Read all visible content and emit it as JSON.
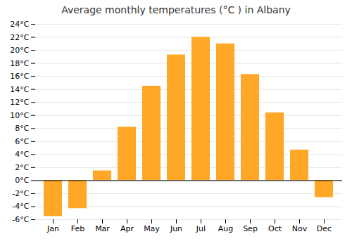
{
  "chart_data": {
    "type": "bar",
    "title": "Average monthly temperatures (°C ) in Albany",
    "categories": [
      "Jan",
      "Feb",
      "Mar",
      "Apr",
      "May",
      "Jun",
      "Jul",
      "Aug",
      "Sep",
      "Oct",
      "Nov",
      "Dec"
    ],
    "values": [
      -5.5,
      -4.3,
      1.5,
      8.2,
      14.5,
      19.3,
      22.0,
      21.0,
      16.3,
      10.4,
      4.7,
      -2.6
    ],
    "color": "#FFA726",
    "ylim": [
      -6,
      24
    ],
    "yticks": [
      {
        "value": -6,
        "label": "-6°C"
      },
      {
        "value": -4,
        "label": "-4°C"
      },
      {
        "value": -2,
        "label": "-2°C"
      },
      {
        "value": 0,
        "label": "0°C"
      },
      {
        "value": 2,
        "label": "2°C"
      },
      {
        "value": 4,
        "label": "4°C"
      },
      {
        "value": 6,
        "label": "6°C"
      },
      {
        "value": 8,
        "label": "8°C"
      },
      {
        "value": 10,
        "label": "10°C"
      },
      {
        "value": 12,
        "label": "12°C"
      },
      {
        "value": 14,
        "label": "14°C"
      },
      {
        "value": 16,
        "label": "16°C"
      },
      {
        "value": 18,
        "label": "18°C"
      },
      {
        "value": 20,
        "label": "20°C"
      },
      {
        "value": 22,
        "label": "22°C"
      },
      {
        "value": 24,
        "label": "24°C"
      }
    ],
    "grid": true
  }
}
